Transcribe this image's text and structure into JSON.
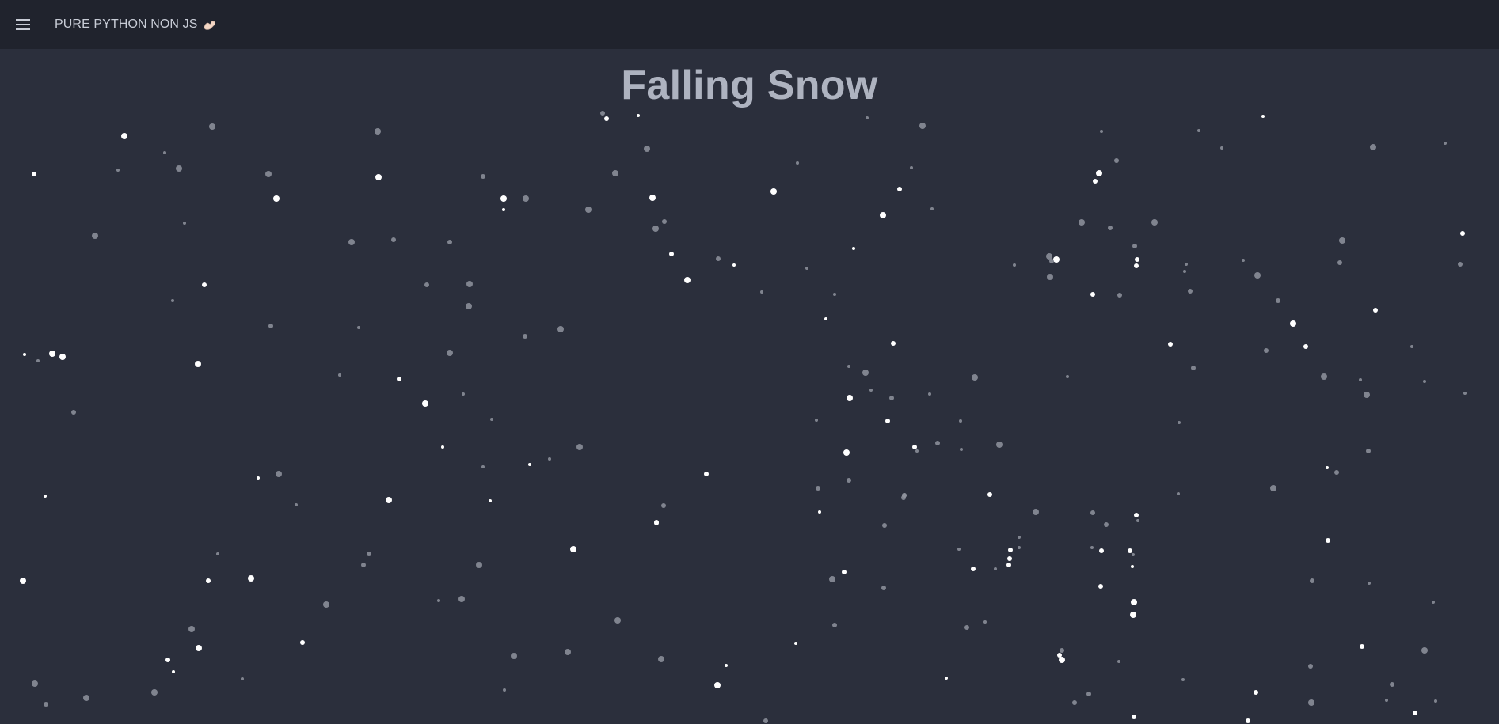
{
  "header": {
    "app_title": "PURE PYTHON NON JS",
    "menu_icon": "hamburger-menu-icon",
    "title_emoji_icon": "flexed-biceps-icon"
  },
  "main": {
    "title": "Falling Snow"
  },
  "colors": {
    "header_bg": "#20232d",
    "page_bg": "#2b2f3c",
    "title": "#aeb3c0",
    "snow_bright": "#ffffff",
    "snow_dim": "#8f939d"
  }
}
